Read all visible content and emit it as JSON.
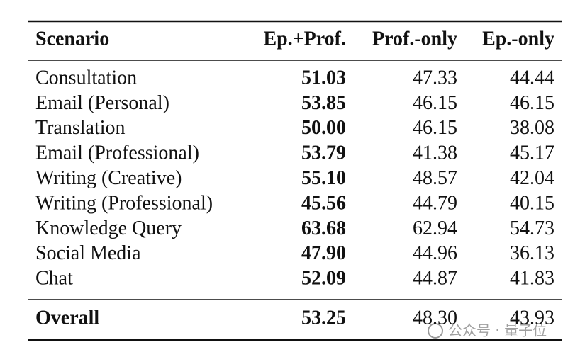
{
  "table": {
    "columns": [
      "Scenario",
      "Ep.+Prof.",
      "Prof.-only",
      "Ep.-only"
    ],
    "rows": [
      [
        "Consultation",
        "51.03",
        "47.33",
        "44.44"
      ],
      [
        "Email (Personal)",
        "53.85",
        "46.15",
        "46.15"
      ],
      [
        "Translation",
        "50.00",
        "46.15",
        "38.08"
      ],
      [
        "Email (Professional)",
        "53.79",
        "41.38",
        "45.17"
      ],
      [
        "Writing (Creative)",
        "55.10",
        "48.57",
        "42.04"
      ],
      [
        "Writing (Professional)",
        "45.56",
        "44.79",
        "40.15"
      ],
      [
        "Knowledge Query",
        "63.68",
        "62.94",
        "54.73"
      ],
      [
        "Social Media",
        "47.90",
        "44.96",
        "36.13"
      ],
      [
        "Chat",
        "52.09",
        "44.87",
        "41.83"
      ]
    ],
    "overall": [
      "Overall",
      "53.25",
      "48.30",
      "43.93"
    ]
  },
  "watermark": "公众号 · 量子位"
}
